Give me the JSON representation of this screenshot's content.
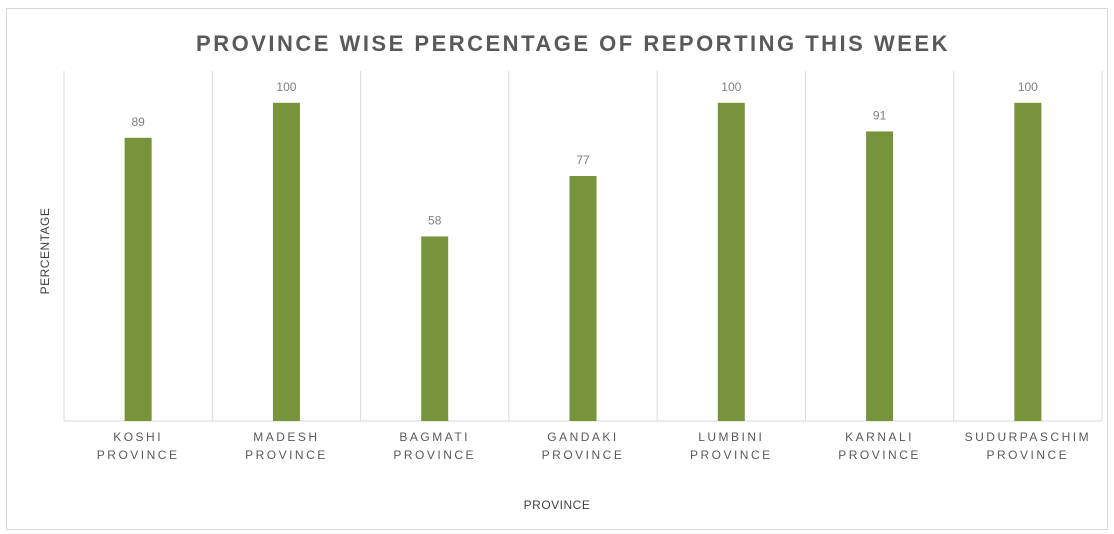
{
  "chart_data": {
    "type": "bar",
    "title": "PROVINCE WISE PERCENTAGE OF REPORTING THIS WEEK",
    "xlabel": "PROVINCE",
    "ylabel": "PERCENTAGE",
    "categories": [
      [
        "KOSHI",
        "PROVINCE"
      ],
      [
        "MADESH",
        "PROVINCE"
      ],
      [
        "BAGMATI",
        "PROVINCE"
      ],
      [
        "GANDAKI",
        "PROVINCE"
      ],
      [
        "LUMBINI",
        "PROVINCE"
      ],
      [
        "KARNALI",
        "PROVINCE"
      ],
      [
        "SUDURPASCHIM",
        "PROVINCE"
      ]
    ],
    "values": [
      89,
      100,
      58,
      77,
      100,
      91,
      100
    ],
    "data_labels": [
      "89",
      "100",
      "58",
      "77",
      "100",
      "91",
      "100"
    ],
    "ylim": [
      0,
      110
    ],
    "bar_color": "#77933c",
    "grid": "vertical category separators",
    "legend": "none"
  }
}
